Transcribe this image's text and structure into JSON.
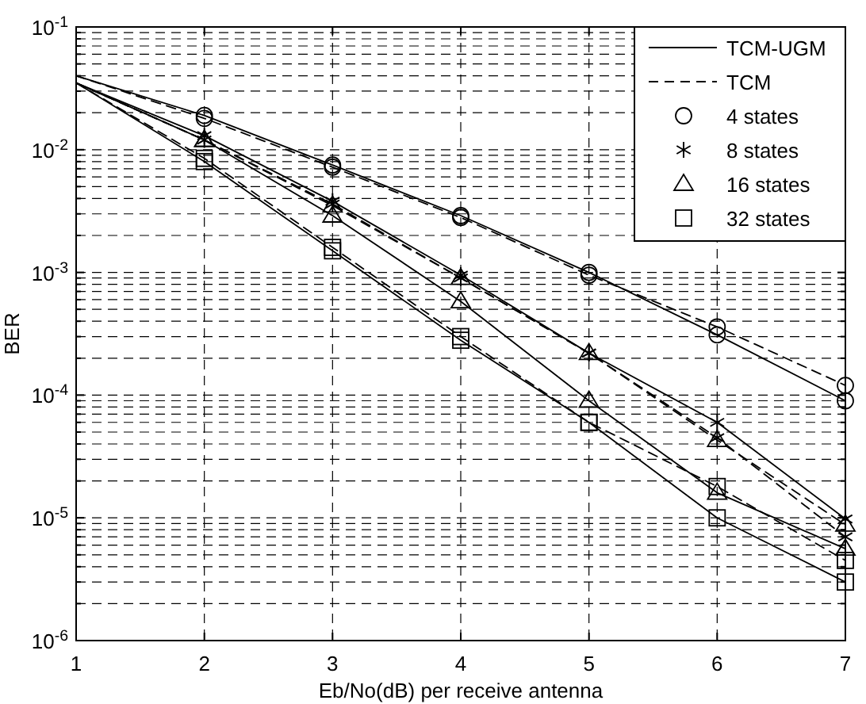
{
  "chart_data": {
    "type": "line",
    "xlabel": "Eb/No(dB) per receive antenna",
    "ylabel": "BER",
    "x": [
      1,
      2,
      3,
      4,
      5,
      6,
      7
    ],
    "xlim": [
      1,
      7
    ],
    "xticks": [
      1,
      2,
      3,
      4,
      5,
      6,
      7
    ],
    "ylim": [
      1e-06,
      0.1
    ],
    "log": "y",
    "grid": true,
    "legend": "top right",
    "yticks": [
      {
        "value": 1e-06,
        "label": "10$^{-6}$"
      },
      {
        "value": 2e-06,
        "label": null
      },
      {
        "value": 3e-06,
        "label": null
      },
      {
        "value": 4e-06,
        "label": null
      },
      {
        "value": 5e-06,
        "label": null
      },
      {
        "value": 6e-06,
        "label": null
      },
      {
        "value": 7e-06,
        "label": null
      },
      {
        "value": 8e-06,
        "label": null
      },
      {
        "value": 9e-06,
        "label": null
      },
      {
        "value": 1e-05,
        "label": "10$^{-5}$"
      },
      {
        "value": 2e-05,
        "label": null
      },
      {
        "value": 3e-05,
        "label": null
      },
      {
        "value": 4e-05,
        "label": null
      },
      {
        "value": 5e-05,
        "label": null
      },
      {
        "value": 6e-05,
        "label": null
      },
      {
        "value": 7e-05,
        "label": null
      },
      {
        "value": 8e-05,
        "label": null
      },
      {
        "value": 9e-05,
        "label": null
      },
      {
        "value": 0.0001,
        "label": "10$^{-4}$"
      },
      {
        "value": 0.0002,
        "label": null
      },
      {
        "value": 0.0003,
        "label": null
      },
      {
        "value": 0.0004,
        "label": null
      },
      {
        "value": 0.0005,
        "label": null
      },
      {
        "value": 0.0006,
        "label": null
      },
      {
        "value": 0.0007,
        "label": null
      },
      {
        "value": 0.0008,
        "label": null
      },
      {
        "value": 0.0009,
        "label": null
      },
      {
        "value": 0.001,
        "label": "10$^{-3}$"
      },
      {
        "value": 0.002,
        "label": null
      },
      {
        "value": 0.003,
        "label": null
      },
      {
        "value": 0.004,
        "label": null
      },
      {
        "value": 0.005,
        "label": null
      },
      {
        "value": 0.006,
        "label": null
      },
      {
        "value": 0.007,
        "label": null
      },
      {
        "value": 0.008,
        "label": null
      },
      {
        "value": 0.009,
        "label": null
      },
      {
        "value": 0.01,
        "label": "10$^{-2}$"
      },
      {
        "value": 0.02,
        "label": null
      },
      {
        "value": 0.03,
        "label": null
      },
      {
        "value": 0.04,
        "label": null
      },
      {
        "value": 0.05,
        "label": null
      },
      {
        "value": 0.06,
        "label": null
      },
      {
        "value": 0.07,
        "label": null
      },
      {
        "value": 0.08,
        "label": null
      },
      {
        "value": 0.09,
        "label": null
      },
      {
        "value": 0.1,
        "label": "10$^{-1}$"
      }
    ],
    "series": [
      {
        "type": "line",
        "name": "TCM-UGM",
        "color": "#000000",
        "line_style": "solid",
        "marker": "none",
        "values": [
          0.04,
          0.019,
          0.0075,
          0.0029,
          0.001,
          0.00031,
          9e-05
        ]
      },
      {
        "type": "line",
        "name": "TCM",
        "color": "#000000",
        "line_style": "dashed",
        "marker": "none",
        "values": [
          0.04,
          0.018,
          0.0072,
          0.0028,
          0.00095,
          0.00036,
          0.00012
        ]
      },
      {
        "type": "line",
        "color": "#000000",
        "line_style": "solid",
        "marker": "none",
        "values": [
          0.035,
          0.013,
          0.0038,
          0.00095,
          0.00022,
          6e-05,
          9.8e-06
        ]
      },
      {
        "type": "line",
        "color": "#000000",
        "line_style": "dashed",
        "marker": "none",
        "values": [
          0.035,
          0.012,
          0.0036,
          0.0009,
          0.00022,
          4.5e-05,
          7e-06
        ]
      },
      {
        "type": "line",
        "color": "#000000",
        "line_style": "solid",
        "marker": "none",
        "values": [
          0.035,
          0.012,
          0.0029,
          0.00058,
          9e-05,
          1.6e-05,
          5.6e-06
        ]
      },
      {
        "type": "line",
        "color": "#000000",
        "line_style": "dashed",
        "marker": "none",
        "values": [
          0.035,
          0.012,
          0.0035,
          0.0009,
          0.00022,
          4.3e-05,
          8.8e-06
        ]
      },
      {
        "type": "line",
        "color": "#000000",
        "line_style": "solid",
        "marker": "none",
        "values": [
          0.035,
          0.008,
          0.0015,
          0.00028,
          6e-05,
          1e-05,
          3e-06
        ]
      },
      {
        "type": "line",
        "color": "#000000",
        "line_style": "dashed",
        "marker": "none",
        "values": [
          0.035,
          0.0085,
          0.0016,
          0.0003,
          6e-05,
          1.8e-05,
          4.5e-06
        ]
      },
      {
        "type": "scatter",
        "name": "4 states",
        "color": "#000000",
        "marker": "circle",
        "x": [
          2,
          3,
          4,
          5,
          6,
          7
        ],
        "values": [
          0.019,
          0.0075,
          0.0029,
          0.001,
          0.00031,
          9e-05
        ]
      },
      {
        "type": "scatter",
        "color": "#000000",
        "marker": "circle",
        "x": [
          2,
          3,
          4,
          5,
          6,
          7
        ],
        "values": [
          0.018,
          0.0072,
          0.0028,
          0.00095,
          0.00036,
          0.00012
        ]
      },
      {
        "type": "scatter",
        "name": "8 states",
        "color": "#000000",
        "marker": "cross",
        "x": [
          2,
          3,
          4,
          5,
          6,
          7
        ],
        "values": [
          0.013,
          0.0038,
          0.00095,
          0.00022,
          6e-05,
          9.8e-06
        ]
      },
      {
        "type": "scatter",
        "color": "#000000",
        "marker": "cross",
        "x": [
          2,
          3,
          4,
          5,
          6,
          7
        ],
        "values": [
          0.012,
          0.0036,
          0.0009,
          0.00022,
          4.5e-05,
          7e-06
        ]
      },
      {
        "type": "scatter",
        "name": "16 states",
        "color": "#000000",
        "marker": "triangle",
        "x": [
          2,
          3,
          4,
          5,
          6,
          7
        ],
        "values": [
          0.012,
          0.0029,
          0.00058,
          9e-05,
          1.6e-05,
          5.6e-06
        ]
      },
      {
        "type": "scatter",
        "color": "#000000",
        "marker": "triangle",
        "x": [
          2,
          3,
          4,
          5,
          6,
          7
        ],
        "values": [
          0.012,
          0.0035,
          0.0009,
          0.00022,
          4.3e-05,
          8.8e-06
        ]
      },
      {
        "type": "scatter",
        "name": "32 states",
        "color": "#000000",
        "marker": "square",
        "x": [
          2,
          3,
          4,
          5,
          6,
          7
        ],
        "values": [
          0.008,
          0.0015,
          0.00028,
          6e-05,
          1e-05,
          3e-06
        ]
      },
      {
        "type": "scatter",
        "color": "#000000",
        "marker": "square",
        "x": [
          2,
          3,
          4,
          5,
          6,
          7
        ],
        "values": [
          0.0085,
          0.0016,
          0.0003,
          6e-05,
          1.8e-05,
          4.5e-06
        ]
      }
    ]
  }
}
